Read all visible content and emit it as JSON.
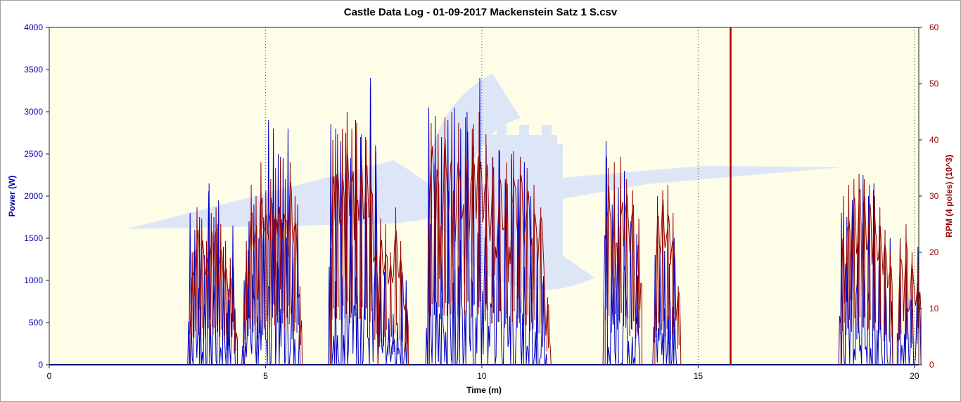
{
  "chart_data": {
    "type": "line",
    "title": "Castle Data Log - 01-09-2017 Mackenstein Satz 1 S.csv",
    "xlabel": "Time (m)",
    "ylabel_left": "Power (W)",
    "ylabel_right": "RPM (4 poles) (10^3)",
    "xlim": [
      0,
      20.1
    ],
    "ylim_left": [
      0,
      4000
    ],
    "ylim_right": [
      0,
      60
    ],
    "x_ticks": [
      "0",
      "5",
      "10",
      "15",
      "20"
    ],
    "y_left_ticks": [
      "0",
      "500",
      "1000",
      "1500",
      "2000",
      "2500",
      "3000",
      "3500",
      "4000"
    ],
    "y_right_ticks": [
      "0",
      "10",
      "20",
      "30",
      "40",
      "50",
      "60"
    ],
    "grid": "vertical dotted at major x ticks",
    "marker_line_x": 15.75,
    "colors": {
      "power": "#0000cc",
      "rpm": "#990000",
      "marker": "#aa0000",
      "plot_bg": "#fdfde8",
      "watermark": "#dde6f7"
    },
    "series": [
      {
        "name": "Power (W)",
        "axis": "left",
        "bursts": [
          {
            "start": 3.2,
            "end": 4.3,
            "peaks": [
              1800,
              1600,
              1750,
              1300,
              2150,
              1750,
              1950,
              1400,
              900,
              1650
            ]
          },
          {
            "start": 4.45,
            "end": 5.8,
            "peaks": [
              1000,
              1700,
              1900,
              1500,
              1750,
              2900,
              2800,
              2500,
              2450,
              2800,
              1500,
              1900
            ]
          },
          {
            "start": 6.45,
            "end": 7.6,
            "peaks": [
              2850,
              2800,
              2650,
              2750,
              2450,
              2900,
              2700,
              2700,
              3400,
              2600
            ]
          },
          {
            "start": 7.6,
            "end": 8.3,
            "peaks": [
              1050,
              1100,
              550,
              600,
              500,
              1100,
              1000
            ]
          },
          {
            "start": 8.7,
            "end": 11.5,
            "peaks": [
              3050,
              2950,
              2700,
              2900,
              3050,
              2800,
              3000,
              2850,
              3400,
              2600,
              2450,
              2550,
              2200,
              2500,
              2200,
              2400,
              2000,
              1500,
              1050
            ]
          },
          {
            "start": 12.8,
            "end": 13.65,
            "peaks": [
              2650,
              1900,
              2100,
              2300,
              1700,
              1550
            ]
          },
          {
            "start": 13.95,
            "end": 14.5,
            "peaks": [
              1300,
              1400,
              1350,
              1200,
              1500
            ]
          },
          {
            "start": 18.25,
            "end": 19.5,
            "peaks": [
              1800,
              1750,
              1950,
              1500,
              2250,
              2000,
              2150,
              1650,
              1400,
              1500
            ]
          },
          {
            "start": 19.6,
            "end": 20.15,
            "peaks": [
              1500,
              1200,
              1000,
              1400
            ]
          }
        ]
      },
      {
        "name": "RPM (4 poles) (10^3)",
        "axis": "right",
        "bursts": [
          {
            "start": 3.25,
            "end": 4.35,
            "peaks": [
              20,
              28,
              26,
              22,
              27,
              28,
              25,
              22,
              19,
              10
            ]
          },
          {
            "start": 4.5,
            "end": 5.85,
            "peaks": [
              22,
              32,
              30,
              36,
              31,
              33,
              35,
              37,
              33,
              36,
              30,
              14
            ]
          },
          {
            "start": 6.5,
            "end": 7.6,
            "peaks": [
              40,
              41,
              42,
              45,
              42,
              43,
              41,
              40,
              38,
              22
            ]
          },
          {
            "start": 7.6,
            "end": 8.3,
            "peaks": [
              26,
              25,
              20,
              28,
              22,
              12
            ]
          },
          {
            "start": 8.75,
            "end": 11.6,
            "peaks": [
              43,
              41,
              44,
              45,
              43,
              44,
              42,
              45,
              41,
              37,
              38,
              36,
              38,
              37,
              35,
              32,
              28,
              12
            ]
          },
          {
            "start": 12.85,
            "end": 13.7,
            "peaks": [
              35,
              36,
              37,
              33,
              31,
              26
            ]
          },
          {
            "start": 14.0,
            "end": 14.6,
            "peaks": [
              30,
              31,
              32,
              27,
              14
            ]
          },
          {
            "start": 18.3,
            "end": 19.5,
            "peaks": [
              30,
              32,
              33,
              34,
              33,
              32,
              30,
              28,
              24,
              20
            ]
          },
          {
            "start": 19.6,
            "end": 20.15,
            "peaks": [
              22,
              25,
              20,
              18
            ]
          }
        ]
      }
    ]
  }
}
